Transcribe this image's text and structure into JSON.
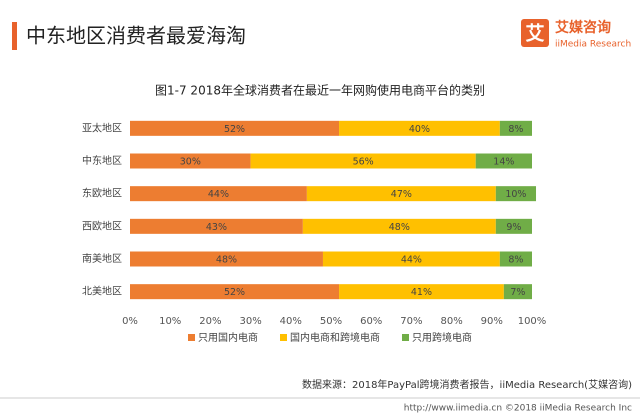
{
  "header": {
    "title": "中东地区消费者最爱海淘"
  },
  "logo": {
    "icon_text": "艾",
    "name": "艾媒咨询",
    "english": "iiMedia Research"
  },
  "chart_data": {
    "type": "stacked_barh",
    "title": "图1-7 2018年全球消费者在最近一年网购使用电商平台的类别",
    "categories": [
      "亚太地区",
      "中东地区",
      "东欧地区",
      "西欧地区",
      "南美地区",
      "北美地区"
    ],
    "series": [
      {
        "name": "只用国内电商",
        "color": "#ed7d31",
        "values": [
          52,
          30,
          44,
          43,
          48,
          52
        ],
        "value_labels": [
          "52%",
          "30%",
          "44%",
          "43%",
          "48%",
          "52%"
        ]
      },
      {
        "name": "国内电商和跨境电商",
        "color": "#ffc000",
        "values": [
          40,
          56,
          47,
          48,
          44,
          41
        ],
        "value_labels": [
          "40%",
          "56%",
          "47%",
          "48%",
          "44%",
          "41%"
        ]
      },
      {
        "name": "只用跨境电商",
        "color": "#70ad47",
        "values": [
          8,
          14,
          10,
          9,
          8,
          7
        ],
        "value_labels": [
          "8%",
          "14%",
          "10%",
          "9%",
          "8%",
          "7%"
        ]
      }
    ],
    "xlim": [
      0,
      100
    ],
    "xticks": [
      {
        "value": 0,
        "label": "0%"
      },
      {
        "value": 10,
        "label": "10%"
      },
      {
        "value": 20,
        "label": "20%"
      },
      {
        "value": 30,
        "label": "30%"
      },
      {
        "value": 40,
        "label": "40%"
      },
      {
        "value": 50,
        "label": "50%"
      },
      {
        "value": 60,
        "label": "60%"
      },
      {
        "value": 70,
        "label": "70%"
      },
      {
        "value": 80,
        "label": "80%"
      },
      {
        "value": 90,
        "label": "90%"
      },
      {
        "value": 100,
        "label": "100%"
      }
    ],
    "legend": "bottom"
  },
  "source": "数据来源：2018年PayPal跨境消费者报告，iiMedia Research(艾媒咨询)",
  "footer": "http://www.iimedia.cn  ©2018  iiMedia Research Inc"
}
